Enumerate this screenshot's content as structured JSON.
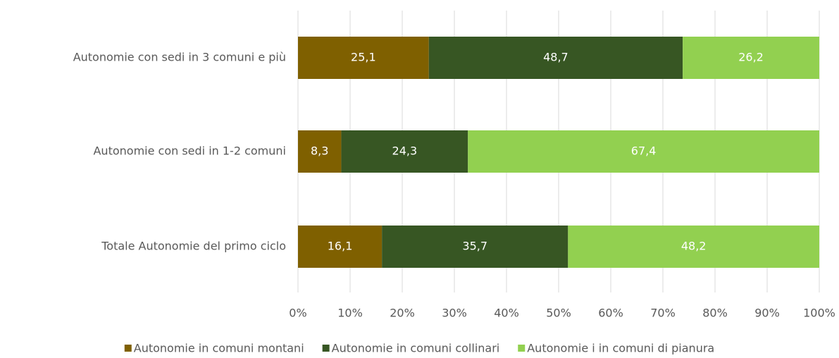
{
  "chart_data": {
    "type": "stacked-barh",
    "categories": [
      "Autonomie con sedi in 3 comuni e più",
      "Autonomie con sedi in 1-2 comuni",
      "Totale Autonomie del primo ciclo"
    ],
    "series": [
      {
        "name": "Autonomie in comuni montani",
        "color": "#7f6000",
        "values": [
          25.1,
          8.3,
          16.1
        ],
        "value_labels": [
          "25,1",
          "8,3",
          "16,1"
        ]
      },
      {
        "name": "Autonomie in comuni collinari",
        "color": "#375623",
        "values": [
          48.7,
          24.3,
          35.7
        ],
        "value_labels": [
          "48,7",
          "24,3",
          "35,7"
        ]
      },
      {
        "name": "Autonomie i in comuni di pianura",
        "color": "#92d050",
        "values": [
          26.2,
          67.4,
          48.2
        ],
        "value_labels": [
          "26,2",
          "67,4",
          "48,2"
        ]
      }
    ],
    "xlim": [
      0,
      100
    ],
    "xticks": [
      {
        "value": 0,
        "label": "0%"
      },
      {
        "value": 10,
        "label": "10%"
      },
      {
        "value": 20,
        "label": "20%"
      },
      {
        "value": 30,
        "label": "30%"
      },
      {
        "value": 40,
        "label": "40%"
      },
      {
        "value": 50,
        "label": "50%"
      },
      {
        "value": 60,
        "label": "60%"
      },
      {
        "value": 70,
        "label": "70%"
      },
      {
        "value": 80,
        "label": "80%"
      },
      {
        "value": 90,
        "label": "90%"
      },
      {
        "value": 100,
        "label": "100%"
      }
    ],
    "grid": true,
    "legend": "bottom"
  }
}
